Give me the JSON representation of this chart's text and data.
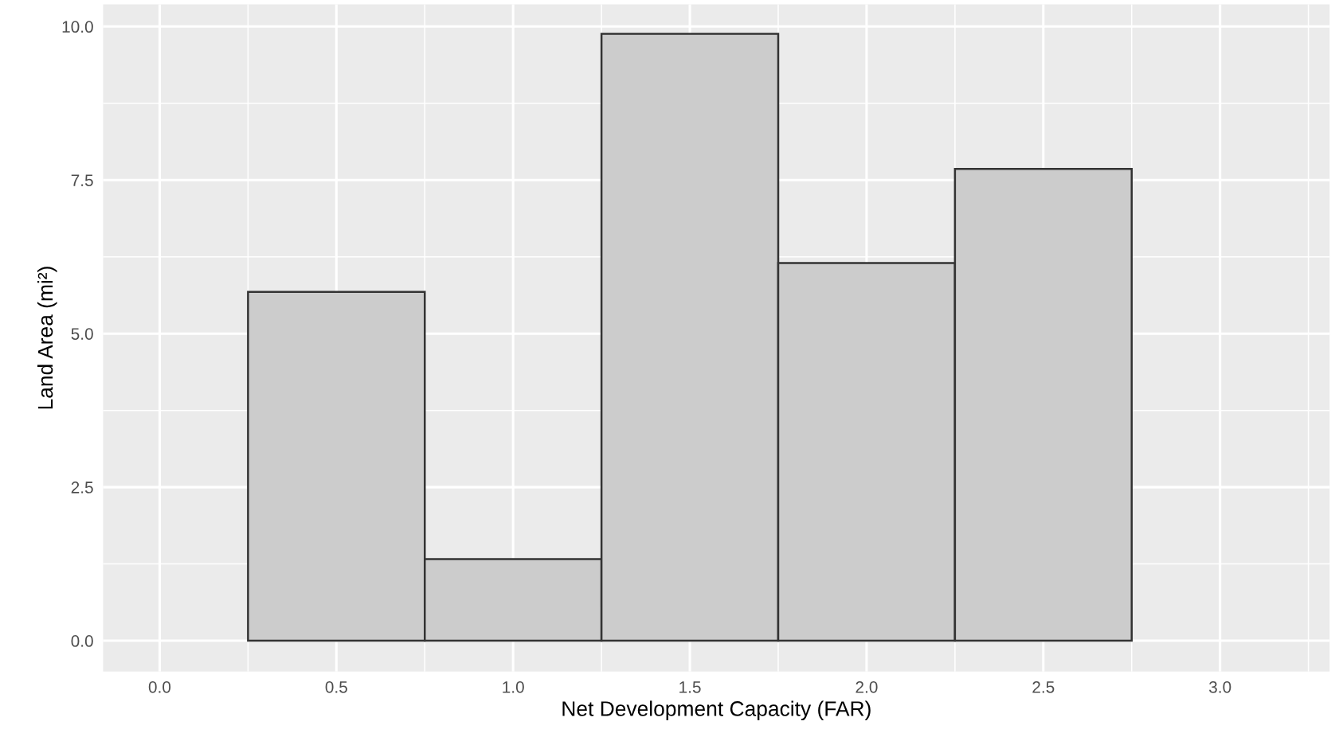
{
  "chart_data": {
    "type": "histogram",
    "xlabel": "Net Development Capacity (FAR)",
    "ylabel": "Land Area (mi²)",
    "bins": [
      0.25,
      0.75,
      1.25,
      1.75,
      2.25,
      2.75
    ],
    "values": [
      5.68,
      1.33,
      9.88,
      6.15,
      7.68
    ],
    "color": "#cccccc",
    "xlim": [
      -0.16,
      3.31
    ],
    "ylim": [
      -0.5,
      10.36
    ],
    "xticks": [
      {
        "value": 0,
        "label": "0.0"
      },
      0.5,
      {
        "value": 1,
        "label": "1.0"
      },
      1.5,
      {
        "value": 2,
        "label": "2.0"
      },
      2.5,
      {
        "value": 3,
        "label": "3.0"
      }
    ],
    "yticks": [
      {
        "value": 0,
        "label": "0.0"
      },
      2.5,
      {
        "value": 5,
        "label": "5.0"
      },
      7.5,
      {
        "value": 10,
        "label": "10.0"
      }
    ],
    "grid": true
  }
}
